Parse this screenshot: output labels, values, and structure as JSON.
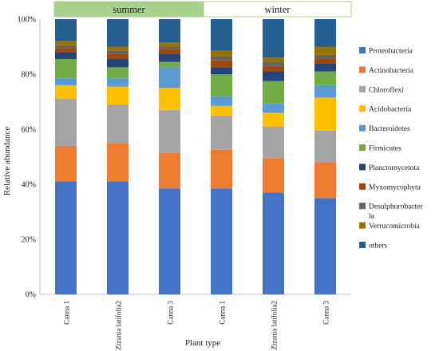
{
  "chart_data": {
    "type": "bar",
    "stacked": true,
    "title": "",
    "xlabel": "Plant type",
    "ylabel": "Relative abundance",
    "ylim": [
      0,
      100
    ],
    "yticks": [
      "0%",
      "20%",
      "40%",
      "60%",
      "80%",
      "100%"
    ],
    "season_groups": [
      {
        "label": "summer",
        "color": "#a9d18e",
        "categories": [
          0,
          1,
          2
        ]
      },
      {
        "label": "winter",
        "color": "#ffffff",
        "categories": [
          3,
          4,
          5
        ]
      }
    ],
    "categories": [
      "Canna 1",
      "Zizania latifolia2",
      "Canna 3",
      "Canna 1",
      "Zizania latifolia2",
      "Canna 3"
    ],
    "legend_position": "right",
    "series": [
      {
        "name": "Proteobacteria",
        "color": "#4472c4",
        "values": [
          41,
          41,
          38.5,
          38.5,
          37,
          35
        ]
      },
      {
        "name": "Actinobacteria",
        "color": "#ed7d31",
        "values": [
          13,
          14,
          13,
          14,
          12.5,
          13
        ]
      },
      {
        "name": "Chloroflexi",
        "color": "#a5a5a5",
        "values": [
          17,
          14,
          15.5,
          12.5,
          11.5,
          11.5
        ]
      },
      {
        "name": "Acidobacteria",
        "color": "#ffc000",
        "values": [
          5,
          6.5,
          8,
          3.5,
          5,
          12
        ]
      },
      {
        "name": "Bacteroidetes",
        "color": "#5b9bd5",
        "values": [
          2.5,
          3,
          7.5,
          3.5,
          3.5,
          4.5
        ]
      },
      {
        "name": "Firmicutes",
        "color": "#70ad47",
        "values": [
          7,
          4,
          2,
          8,
          8,
          5
        ]
      },
      {
        "name": "Planctomycetota",
        "color": "#264478",
        "values": [
          2.5,
          3,
          3,
          2.5,
          3.5,
          3
        ]
      },
      {
        "name": "Myxomycophyta",
        "color": "#9e480e",
        "values": [
          1.5,
          2,
          1.5,
          2.5,
          2,
          1.5
        ]
      },
      {
        "name": "Desulphurobacteria",
        "color": "#636363",
        "values": [
          1,
          1,
          1,
          1.5,
          1.5,
          1.5
        ]
      },
      {
        "name": "Verrucomicrobia",
        "color": "#997300",
        "values": [
          1.5,
          1.5,
          1.5,
          2,
          1.5,
          3
        ]
      },
      {
        "name": "others",
        "color": "#255e91",
        "values": [
          8,
          10,
          8.5,
          11.5,
          14,
          10
        ]
      }
    ],
    "legend_labels": [
      [
        "Proteobacteria"
      ],
      [
        "Actinobacteria"
      ],
      [
        "Chloroflexi"
      ],
      [
        "Acidobacteria"
      ],
      [
        "Bacteroidetes"
      ],
      [
        "Firmicutes"
      ],
      [
        "Planctomycetota"
      ],
      [
        "Myxomycophyta"
      ],
      [
        "Desulphurobacter",
        "ia"
      ],
      [
        "Verrucomicrobia"
      ],
      [
        "others"
      ]
    ]
  }
}
